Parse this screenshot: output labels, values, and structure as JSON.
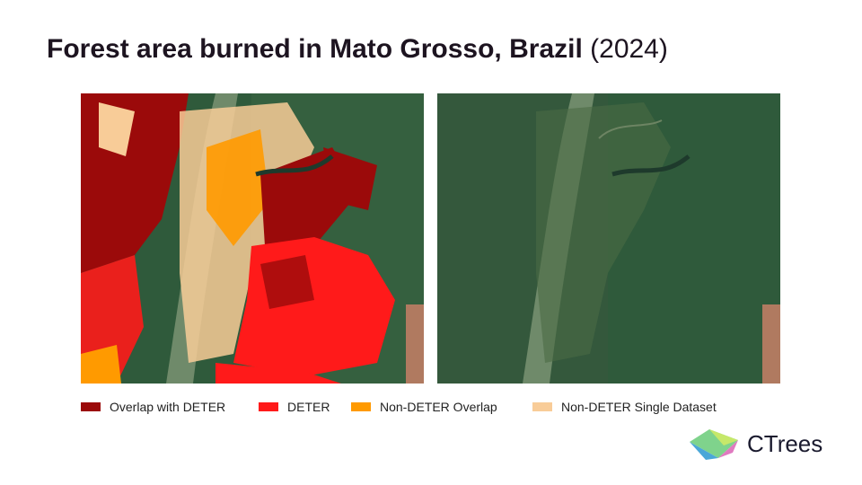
{
  "header": {
    "title": "Forest area burned in Mato Grosso, Brazil",
    "year": "(2024)"
  },
  "legend": [
    {
      "label": "Overlap with DETER",
      "color": "#9b0a0a"
    },
    {
      "label": "DETER",
      "color": "#ff1a1a"
    },
    {
      "label": "Non-DETER Overlap",
      "color": "#ff9a00"
    },
    {
      "label": "Non-DETER Single Dataset",
      "color": "#f8cc98"
    }
  ],
  "logo": {
    "text": "CTrees"
  }
}
